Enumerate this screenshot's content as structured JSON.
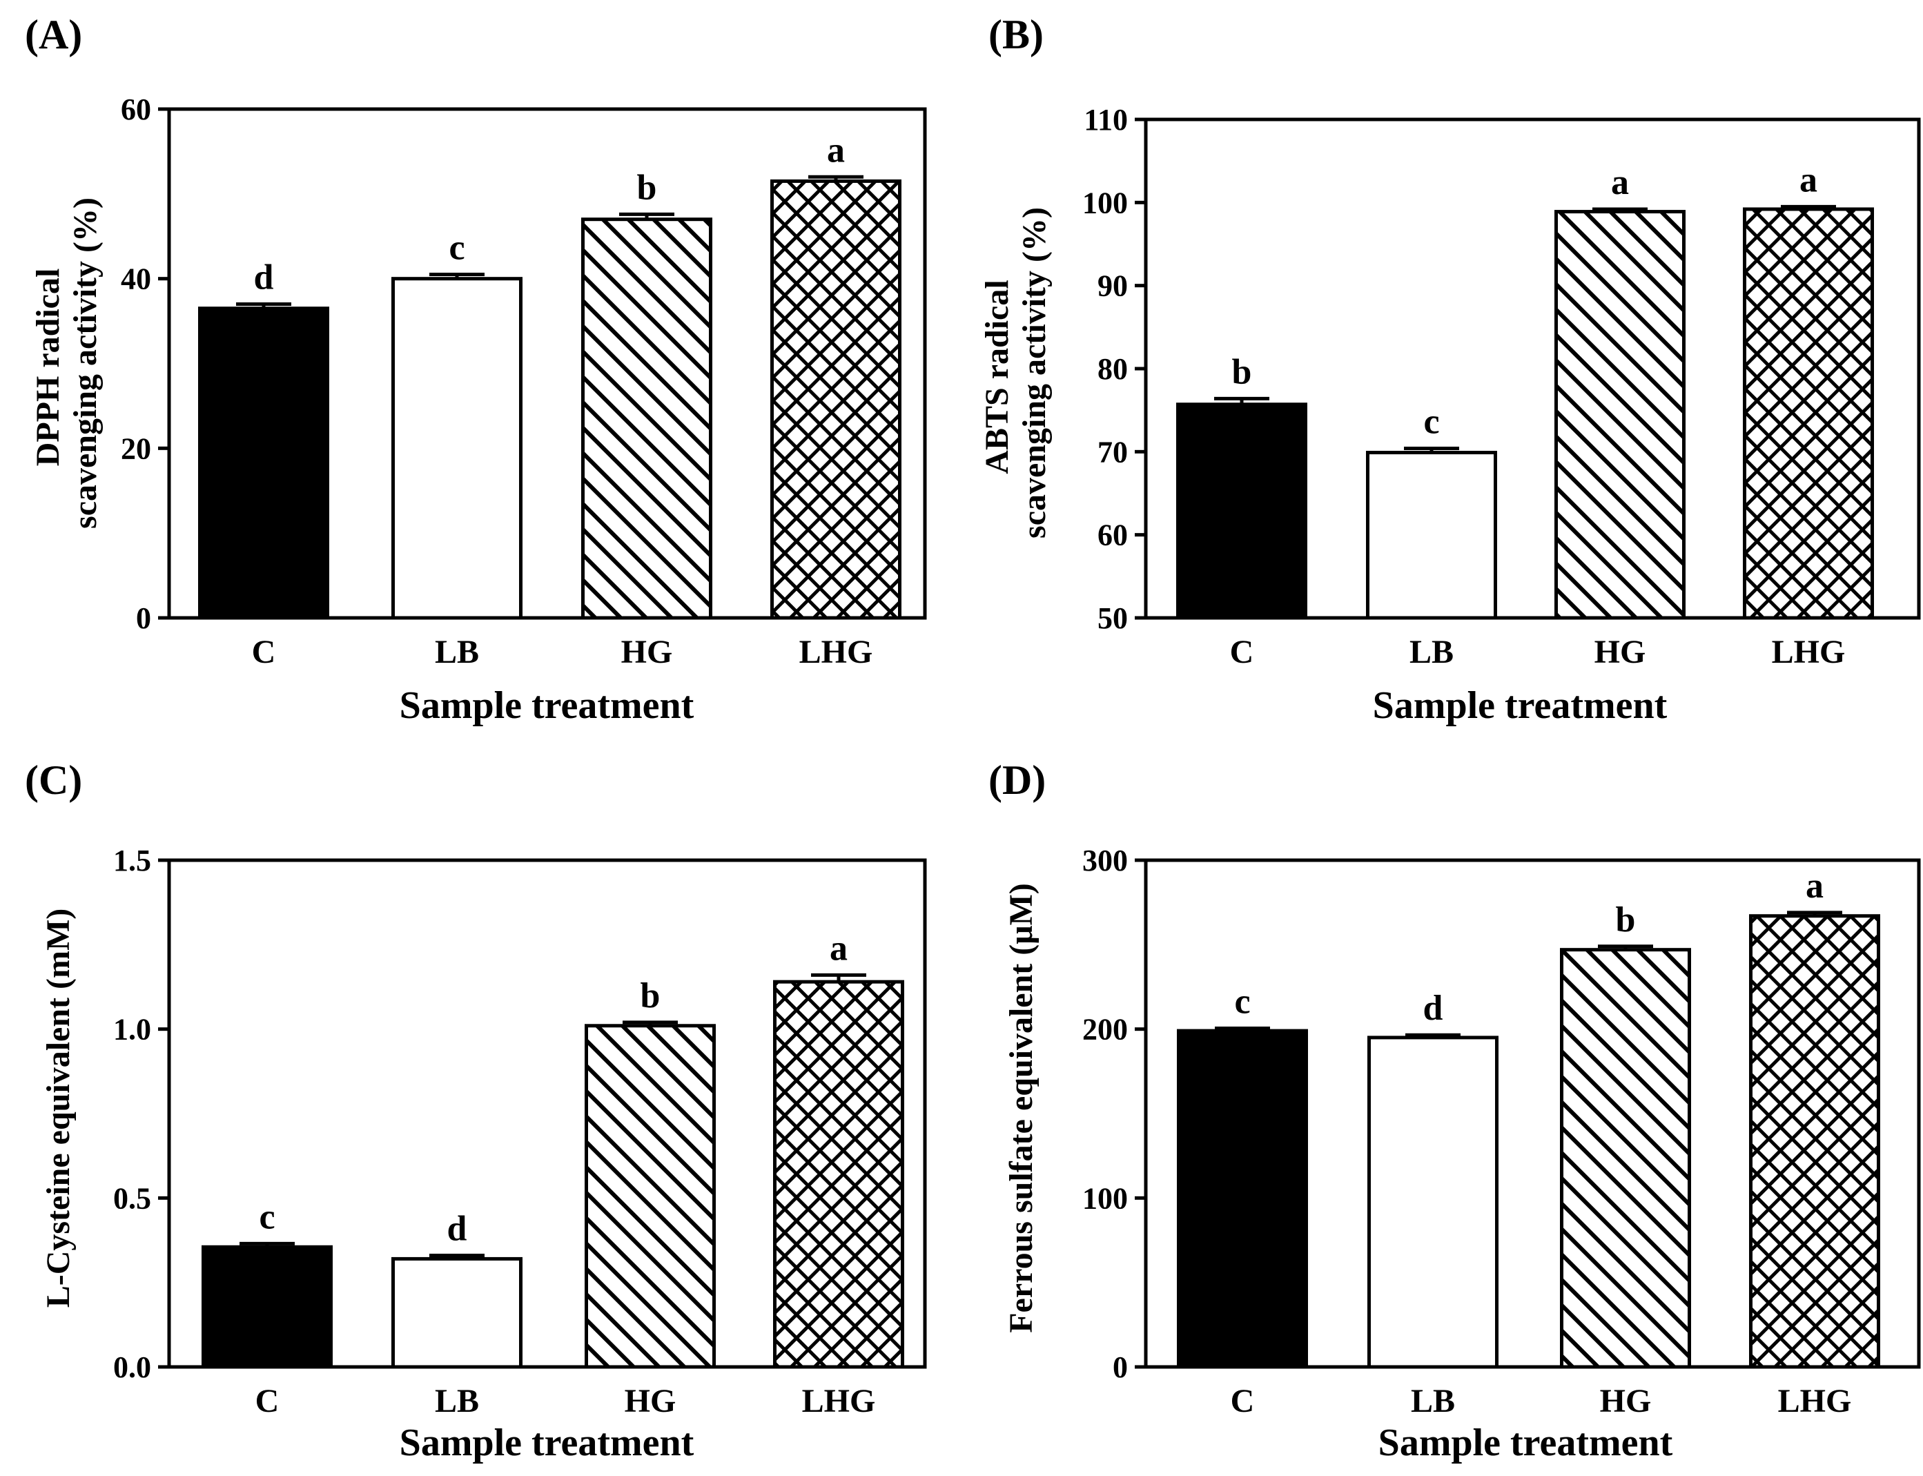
{
  "chart_data": [
    {
      "panel": "(A)",
      "type": "bar",
      "title": "",
      "categories": [
        "C",
        "LB",
        "HG",
        "LHG"
      ],
      "values": [
        36.5,
        40.0,
        47.0,
        51.5
      ],
      "errors": [
        0.5,
        0.5,
        0.6,
        0.5
      ],
      "significance": [
        "d",
        "c",
        "b",
        "a"
      ],
      "xlabel": "Sample treatment",
      "ylabel_lines": [
        "DPPH radical",
        "scavenging activity (%)"
      ],
      "ylim": [
        0,
        60
      ],
      "yticks": [
        0,
        20,
        40,
        60
      ],
      "ytick_labels": [
        "0",
        "20",
        "40",
        "60"
      ]
    },
    {
      "panel": "(B)",
      "type": "bar",
      "title": "",
      "categories": [
        "C",
        "LB",
        "HG",
        "LHG"
      ],
      "values": [
        75.7,
        69.9,
        98.9,
        99.2
      ],
      "errors": [
        0.7,
        0.5,
        0.3,
        0.3
      ],
      "significance": [
        "b",
        "c",
        "a",
        "a"
      ],
      "xlabel": "Sample treatment",
      "ylabel_lines": [
        "ABTS radical",
        "scavenging activity (%)"
      ],
      "ylim": [
        50,
        110
      ],
      "yticks": [
        50,
        60,
        70,
        80,
        90,
        100,
        110
      ],
      "ytick_labels": [
        "50",
        "60",
        "70",
        "80",
        "90",
        "100",
        "110"
      ]
    },
    {
      "panel": "(C)",
      "type": "bar",
      "title": "",
      "categories": [
        "C",
        "LB",
        "HG",
        "LHG"
      ],
      "values": [
        0.355,
        0.32,
        1.01,
        1.14
      ],
      "errors": [
        0.01,
        0.01,
        0.01,
        0.02
      ],
      "significance": [
        "c",
        "d",
        "b",
        "a"
      ],
      "xlabel": "Sample treatment",
      "ylabel_lines": [
        "L-Cysteine equivalent (mM)"
      ],
      "ylim": [
        0,
        1.5
      ],
      "yticks": [
        0,
        0.5,
        1.0,
        1.5
      ],
      "ytick_labels": [
        "0.0",
        "0.5",
        "1.0",
        "1.5"
      ]
    },
    {
      "panel": "(D)",
      "type": "bar",
      "title": "",
      "categories": [
        "C",
        "LB",
        "HG",
        "LHG"
      ],
      "values": [
        199,
        195,
        247,
        267
      ],
      "errors": [
        1.5,
        1.5,
        2,
        2
      ],
      "significance": [
        "c",
        "d",
        "b",
        "a"
      ],
      "xlabel": "Sample treatment",
      "ylabel_lines": [
        "Ferrous sulfate equivalent (μM)"
      ],
      "ylim": [
        0,
        300
      ],
      "yticks": [
        0,
        100,
        200,
        300
      ],
      "ytick_labels": [
        "0",
        "100",
        "200",
        "300"
      ]
    }
  ],
  "colors": {
    "ink": "#000000",
    "background": "#ffffff"
  },
  "fill_styles": [
    "solid-black",
    "white",
    "diagonal-hatch",
    "cross-hatch"
  ]
}
